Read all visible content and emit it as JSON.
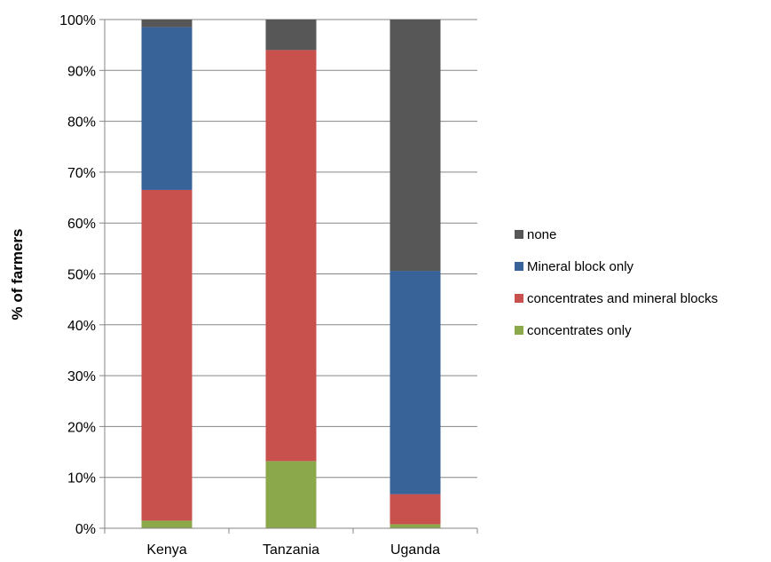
{
  "chart_data": {
    "type": "bar",
    "stacked": true,
    "categories": [
      "Kenya",
      "Tanzania",
      "Uganda"
    ],
    "series": [
      {
        "name": "concentrates only",
        "color": "#8BA84A",
        "values": [
          1.5,
          13.2,
          0.8
        ]
      },
      {
        "name": "concentrates and mineral blocks",
        "color": "#C8504D",
        "values": [
          65.0,
          80.8,
          5.9
        ]
      },
      {
        "name": "Mineral block only",
        "color": "#376398",
        "values": [
          32.0,
          0.0,
          43.9
        ]
      },
      {
        "name": "none",
        "color": "#575757",
        "values": [
          1.5,
          6.0,
          49.4
        ]
      }
    ],
    "title": "",
    "xlabel": "",
    "ylabel": "% of farmers",
    "ylim": [
      0,
      100
    ],
    "yticks": [
      "0%",
      "10%",
      "20%",
      "30%",
      "40%",
      "50%",
      "60%",
      "70%",
      "80%",
      "90%",
      "100%"
    ],
    "grid": true,
    "legend": {
      "placement": "right",
      "order": [
        "none",
        "Mineral block only",
        "concentrates and mineral blocks",
        "concentrates only"
      ]
    }
  }
}
